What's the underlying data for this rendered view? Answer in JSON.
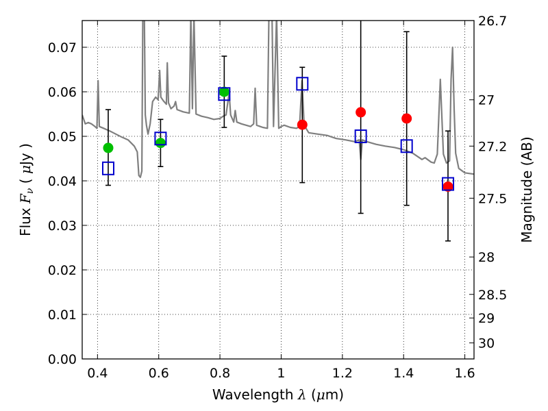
{
  "chart_data": {
    "type": "scatter",
    "title": "",
    "xlabel": "Wavelength  λ (μm)",
    "ylabel": "Flux  F_ν  ( μJy )",
    "y2label": "Magnitude (AB)",
    "xlim": [
      0.35,
      1.63
    ],
    "ylim": [
      0.0,
      0.076
    ],
    "grid": true,
    "x_ticks": [
      0.4,
      0.6,
      0.8,
      1.0,
      1.2,
      1.4,
      1.6
    ],
    "x_tick_labels": [
      "0.4",
      "0.6",
      "0.8",
      "1",
      "1.2",
      "1.4",
      "1.6"
    ],
    "y_ticks": [
      0.0,
      0.01,
      0.02,
      0.03,
      0.04,
      0.05,
      0.06,
      0.07
    ],
    "y_tick_labels": [
      "0.00",
      "0.01",
      "0.02",
      "0.03",
      "0.04",
      "0.05",
      "0.06",
      "0.07"
    ],
    "y2_ticks": [
      {
        "label": "26.7",
        "flux": 0.076
      },
      {
        "label": "27",
        "flux": 0.0582
      },
      {
        "label": "27.2",
        "flux": 0.0478
      },
      {
        "label": "27.5",
        "flux": 0.0361
      },
      {
        "label": "28",
        "flux": 0.0229
      },
      {
        "label": "28.5",
        "flux": 0.0145
      },
      {
        "label": "29",
        "flux": 0.0092
      },
      {
        "label": "30",
        "flux": 0.0036
      }
    ],
    "model_spectrum": {
      "color": "#7f7f7f",
      "points": [
        [
          0.35,
          0.0548
        ],
        [
          0.36,
          0.0528
        ],
        [
          0.37,
          0.0531
        ],
        [
          0.38,
          0.0528
        ],
        [
          0.39,
          0.0523
        ],
        [
          0.398,
          0.0518
        ],
        [
          0.402,
          0.0625
        ],
        [
          0.406,
          0.0522
        ],
        [
          0.42,
          0.0518
        ],
        [
          0.44,
          0.0512
        ],
        [
          0.46,
          0.0505
        ],
        [
          0.48,
          0.0498
        ],
        [
          0.5,
          0.0492
        ],
        [
          0.52,
          0.0478
        ],
        [
          0.53,
          0.0465
        ],
        [
          0.535,
          0.0412
        ],
        [
          0.54,
          0.0408
        ],
        [
          0.545,
          0.0422
        ],
        [
          0.548,
          0.0775
        ],
        [
          0.553,
          0.0775
        ],
        [
          0.556,
          0.0548
        ],
        [
          0.56,
          0.0525
        ],
        [
          0.565,
          0.0505
        ],
        [
          0.572,
          0.0528
        ],
        [
          0.58,
          0.0578
        ],
        [
          0.59,
          0.0588
        ],
        [
          0.598,
          0.0582
        ],
        [
          0.603,
          0.0648
        ],
        [
          0.607,
          0.0588
        ],
        [
          0.615,
          0.058
        ],
        [
          0.625,
          0.0572
        ],
        [
          0.628,
          0.0665
        ],
        [
          0.632,
          0.0575
        ],
        [
          0.64,
          0.0562
        ],
        [
          0.65,
          0.0568
        ],
        [
          0.655,
          0.0578
        ],
        [
          0.66,
          0.056
        ],
        [
          0.68,
          0.0555
        ],
        [
          0.7,
          0.0552
        ],
        [
          0.705,
          0.0775
        ],
        [
          0.71,
          0.0562
        ],
        [
          0.715,
          0.0775
        ],
        [
          0.722,
          0.055
        ],
        [
          0.74,
          0.0545
        ],
        [
          0.76,
          0.0542
        ],
        [
          0.78,
          0.0538
        ],
        [
          0.8,
          0.054
        ],
        [
          0.81,
          0.0545
        ],
        [
          0.82,
          0.0548
        ],
        [
          0.83,
          0.0598
        ],
        [
          0.835,
          0.0548
        ],
        [
          0.845,
          0.0532
        ],
        [
          0.85,
          0.0558
        ],
        [
          0.855,
          0.0532
        ],
        [
          0.87,
          0.0528
        ],
        [
          0.9,
          0.0522
        ],
        [
          0.91,
          0.0528
        ],
        [
          0.915,
          0.0608
        ],
        [
          0.92,
          0.0525
        ],
        [
          0.94,
          0.052
        ],
        [
          0.955,
          0.0518
        ],
        [
          0.96,
          0.0775
        ],
        [
          0.97,
          0.0775
        ],
        [
          0.975,
          0.0522
        ],
        [
          0.985,
          0.0775
        ],
        [
          0.992,
          0.0518
        ],
        [
          1.0,
          0.0522
        ],
        [
          1.01,
          0.0525
        ],
        [
          1.03,
          0.052
        ],
        [
          1.05,
          0.0518
        ],
        [
          1.06,
          0.0522
        ],
        [
          1.068,
          0.0625
        ],
        [
          1.075,
          0.0525
        ],
        [
          1.09,
          0.0508
        ],
        [
          1.12,
          0.0505
        ],
        [
          1.15,
          0.0502
        ],
        [
          1.18,
          0.0495
        ],
        [
          1.21,
          0.0492
        ],
        [
          1.24,
          0.0488
        ],
        [
          1.255,
          0.0492
        ],
        [
          1.26,
          0.0448
        ],
        [
          1.265,
          0.0492
        ],
        [
          1.28,
          0.0488
        ],
        [
          1.31,
          0.0482
        ],
        [
          1.34,
          0.0478
        ],
        [
          1.37,
          0.0475
        ],
        [
          1.4,
          0.047
        ],
        [
          1.43,
          0.0462
        ],
        [
          1.46,
          0.0448
        ],
        [
          1.47,
          0.0452
        ],
        [
          1.49,
          0.0442
        ],
        [
          1.5,
          0.044
        ],
        [
          1.51,
          0.046
        ],
        [
          1.52,
          0.0628
        ],
        [
          1.53,
          0.046
        ],
        [
          1.54,
          0.044
        ],
        [
          1.55,
          0.0445
        ],
        [
          1.555,
          0.0628
        ],
        [
          1.56,
          0.07
        ],
        [
          1.565,
          0.056
        ],
        [
          1.57,
          0.0462
        ],
        [
          1.58,
          0.0428
        ],
        [
          1.6,
          0.0418
        ],
        [
          1.63,
          0.0415
        ]
      ]
    },
    "series": [
      {
        "marker": "circle",
        "color": "#00bf00",
        "points": [
          {
            "x": 0.435,
            "y": 0.0474
          },
          {
            "x": 0.606,
            "y": 0.0485
          },
          {
            "x": 0.814,
            "y": 0.06
          }
        ]
      },
      {
        "marker": "circle",
        "color": "#ff0000",
        "points": [
          {
            "x": 1.069,
            "y": 0.0526
          },
          {
            "x": 1.26,
            "y": 0.0554
          },
          {
            "x": 1.41,
            "y": 0.054
          },
          {
            "x": 1.545,
            "y": 0.0387
          }
        ]
      },
      {
        "marker": "open-square",
        "color": "#0000cc",
        "points": [
          {
            "x": 0.435,
            "y": 0.0428,
            "err": [
              0.039,
              0.056
            ]
          },
          {
            "x": 0.606,
            "y": 0.0495,
            "err": [
              0.0432,
              0.0538
            ]
          },
          {
            "x": 0.814,
            "y": 0.0595,
            "err": [
              0.052,
              0.068
            ]
          },
          {
            "x": 1.069,
            "y": 0.0618,
            "err": [
              0.0396,
              0.0655
            ]
          },
          {
            "x": 1.26,
            "y": 0.05,
            "err": [
              0.0327,
              0.078
            ]
          },
          {
            "x": 1.41,
            "y": 0.0478,
            "err": [
              0.0345,
              0.0735
            ]
          },
          {
            "x": 1.545,
            "y": 0.0393,
            "err": [
              0.0265,
              0.0512
            ]
          }
        ]
      }
    ]
  }
}
